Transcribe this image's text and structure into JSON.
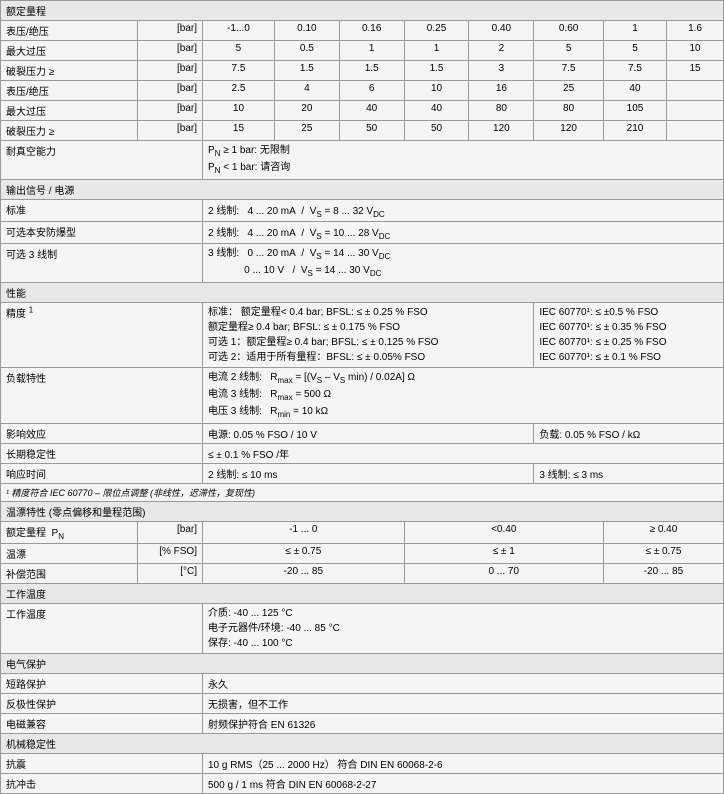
{
  "colors": {
    "border": "#999999",
    "cell_bg": "#f5f5f5",
    "header_bg": "#e8e8e8"
  },
  "font": {
    "family": "Arial",
    "size_pt": 10,
    "footnote_size_pt": 9
  },
  "sections": {
    "rated_range": {
      "title": "额定量程",
      "rows1": [
        {
          "label": "表压/绝压",
          "unit": "[bar]",
          "cells": [
            "-1...0",
            "0.10",
            "0.16",
            "0.25",
            "0.40",
            "0.60",
            "1",
            "1.6"
          ]
        },
        {
          "label": "最大过压",
          "unit": "[bar]",
          "cells": [
            "5",
            "0.5",
            "1",
            "1",
            "2",
            "5",
            "5",
            "10"
          ]
        },
        {
          "label": "破裂压力 ≥",
          "unit": "[bar]",
          "cells": [
            "7.5",
            "1.5",
            "1.5",
            "1.5",
            "3",
            "7.5",
            "7.5",
            "15"
          ]
        }
      ],
      "rows2": [
        {
          "label": "表压/绝压",
          "unit": "[bar]",
          "cells": [
            "2.5",
            "4",
            "6",
            "10",
            "16",
            "25",
            "40"
          ]
        },
        {
          "label": "最大过压",
          "unit": "[bar]",
          "cells": [
            "10",
            "20",
            "40",
            "40",
            "80",
            "80",
            "105"
          ]
        },
        {
          "label": "破裂压力 ≥",
          "unit": "[bar]",
          "cells": [
            "15",
            "25",
            "50",
            "50",
            "120",
            "120",
            "210"
          ]
        }
      ],
      "vacuum": {
        "label": "耐真空能力",
        "lines": [
          "P_N ≥ 1 bar:  无限制",
          "P_N < 1 bar:  请咨询"
        ]
      }
    },
    "output": {
      "title": "输出信号 / 电源",
      "rows": [
        {
          "label": "标准",
          "value": "2 线制:    4 ... 20 mA  /  V_S = 8 ... 32 V_DC"
        },
        {
          "label": "可选本安防爆型",
          "value": "2 线制:    4 ... 20 mA  /  V_S = 10 ... 28 V_DC"
        },
        {
          "label": "可选 3 线制",
          "value_lines": [
            "3 线制:    0 ... 20 mA  /  V_S = 14 ... 30 V_DC",
            "              0 ... 10 V    /  V_S = 14 ... 30 V_DC"
          ]
        }
      ]
    },
    "performance": {
      "title": "性能",
      "accuracy": {
        "label": "精度 ¹",
        "left_lines": [
          "标准：  额定量程< 0.4 bar;  BFSL:  ≤ ± 0.25 % FSO",
          "            额定量程≥ 0.4 bar;  BFSL:  ≤ ± 0.175 % FSO",
          "可选  1：额定量程≥ 0.4 bar;  BFSL:  ≤ ± 0.125 % FSO",
          "可选  2：适用于所有量程：BFSL:  ≤ ± 0.05% FSO"
        ],
        "right_lines": [
          "IEC 60770¹:  ≤ ±0.5 % FSO",
          "IEC 60770¹:  ≤ ± 0.35 % FSO",
          "IEC 60770¹:  ≤ ± 0.25 % FSO",
          "IEC 60770¹:  ≤ ± 0.1 % FSO"
        ]
      },
      "load": {
        "label": "负载特性",
        "lines": [
          "电流 2 线制:    R_max = [(V_S – V_S min) / 0.02A] Ω",
          "电流 3 线制:    R_max = 500 Ω",
          "电压 3 线制:    R_min = 10 kΩ"
        ]
      },
      "influence": {
        "label": "影响效应",
        "left": "电源:  0.05 % FSO / 10 V",
        "right": "负载:   0.05 % FSO / kΩ"
      },
      "stability": {
        "label": "长期稳定性",
        "value": "≤ ± 0.1 % FSO /年"
      },
      "response": {
        "label": "响应时间",
        "left": "2 线制:    ≤ 10 ms",
        "right": "3 线制:    ≤ 3 ms"
      },
      "footnote": "¹ 精度符合 IEC 60770 – 限位点调整  (非线性，迟滞性，复现性)"
    },
    "drift": {
      "title": "温漂特性  (零点偏移和量程范围)",
      "headers": [
        "-1 ... 0",
        "<0.40",
        "≥ 0.40"
      ],
      "rows": [
        {
          "label": "额定量程  P_N",
          "unit": "[bar]"
        },
        {
          "label": "温漂",
          "unit": "[% FSO]",
          "cells": [
            "≤ ± 0.75",
            "≤ ± 1",
            "≤ ± 0.75"
          ]
        },
        {
          "label": "补偿范围",
          "unit": "[°C]",
          "cells": [
            "-20 ... 85",
            "0 ... 70",
            "-20 ... 85"
          ]
        }
      ]
    },
    "operating_temp": {
      "title": "工作温度",
      "label": "工作温度",
      "lines": [
        "介质:                       -40 ... 125 °C",
        "电子元器件/环境:     -40 ... 85 °C",
        "保存:                       -40 ... 100 °C"
      ]
    },
    "electrical": {
      "title": "电气保护",
      "rows": [
        {
          "label": "短路保护",
          "value": "永久"
        },
        {
          "label": "反极性保护",
          "value": "无损害，但不工作"
        },
        {
          "label": "电磁兼容",
          "value": "射频保护符合  EN 61326"
        }
      ]
    },
    "mechanical": {
      "title": "机械稳定性",
      "rows": [
        {
          "label": "抗震",
          "value": "10 g RMS（25 ... 2000 Hz）        符合 DIN EN  60068-2-6"
        },
        {
          "label": "抗冲击",
          "value": "500 g / 1 ms                              符合 DIN EN  60068-2-27"
        }
      ]
    }
  }
}
